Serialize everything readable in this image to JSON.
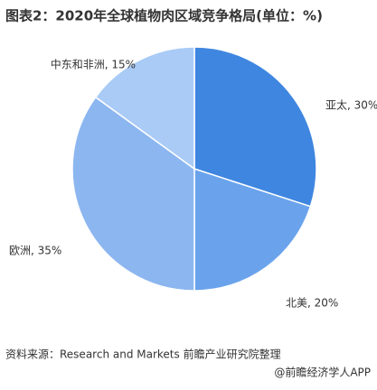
{
  "chart_data": {
    "type": "pie",
    "title": "图表2：2020年全球植物肉区域竞争格局(单位：%)",
    "values": [
      30,
      20,
      35,
      15
    ],
    "value_labels": [
      "亚太, 30%",
      "北美, 20%",
      "欧洲, 35%",
      "中东和非洲, 15%"
    ],
    "colors": [
      "#3f86e0",
      "#6aa3ec",
      "#8cb6f0",
      "#a9cbf6"
    ],
    "source": "资料来源：Research and Markets 前瞻产业研究院整理",
    "credit": "@前瞻经济学人APP"
  }
}
